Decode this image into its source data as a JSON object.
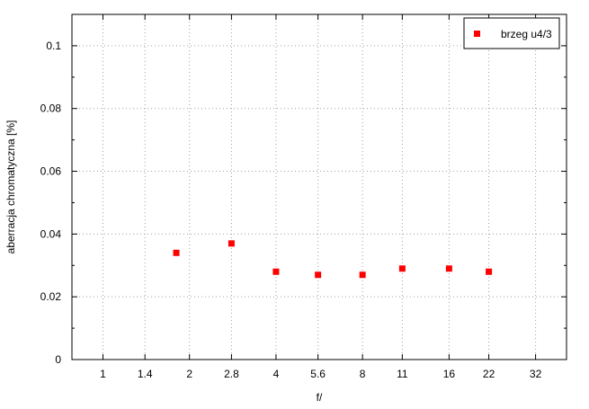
{
  "chart_data": {
    "type": "scatter",
    "title": "",
    "xlabel": "f/",
    "ylabel": "aberracja chromatyczna [%]",
    "x_scale": "log2",
    "x_ticks": [
      1,
      1.4,
      2,
      2.8,
      4,
      5.6,
      8,
      11,
      16,
      22,
      32
    ],
    "x_tick_labels": [
      "1",
      "1.4",
      "2",
      "2.8",
      "4",
      "5.6",
      "8",
      "11",
      "16",
      "22",
      "32"
    ],
    "xlim": [
      0.78,
      41
    ],
    "ylim": [
      0,
      0.11
    ],
    "y_ticks": [
      0,
      0.02,
      0.04,
      0.06,
      0.08,
      0.1
    ],
    "y_tick_labels": [
      "0",
      "0.02",
      "0.04",
      "0.06",
      "0.08",
      "0.1"
    ],
    "grid": true,
    "legend_position": "top-right",
    "series": [
      {
        "name": "brzeg u4/3",
        "color": "#ff0000",
        "marker": "square",
        "points": [
          {
            "x": 1.8,
            "y": 0.034
          },
          {
            "x": 2.8,
            "y": 0.037
          },
          {
            "x": 4,
            "y": 0.028
          },
          {
            "x": 5.6,
            "y": 0.027
          },
          {
            "x": 8,
            "y": 0.027
          },
          {
            "x": 11,
            "y": 0.029
          },
          {
            "x": 16,
            "y": 0.029
          },
          {
            "x": 22,
            "y": 0.028
          }
        ]
      }
    ]
  }
}
